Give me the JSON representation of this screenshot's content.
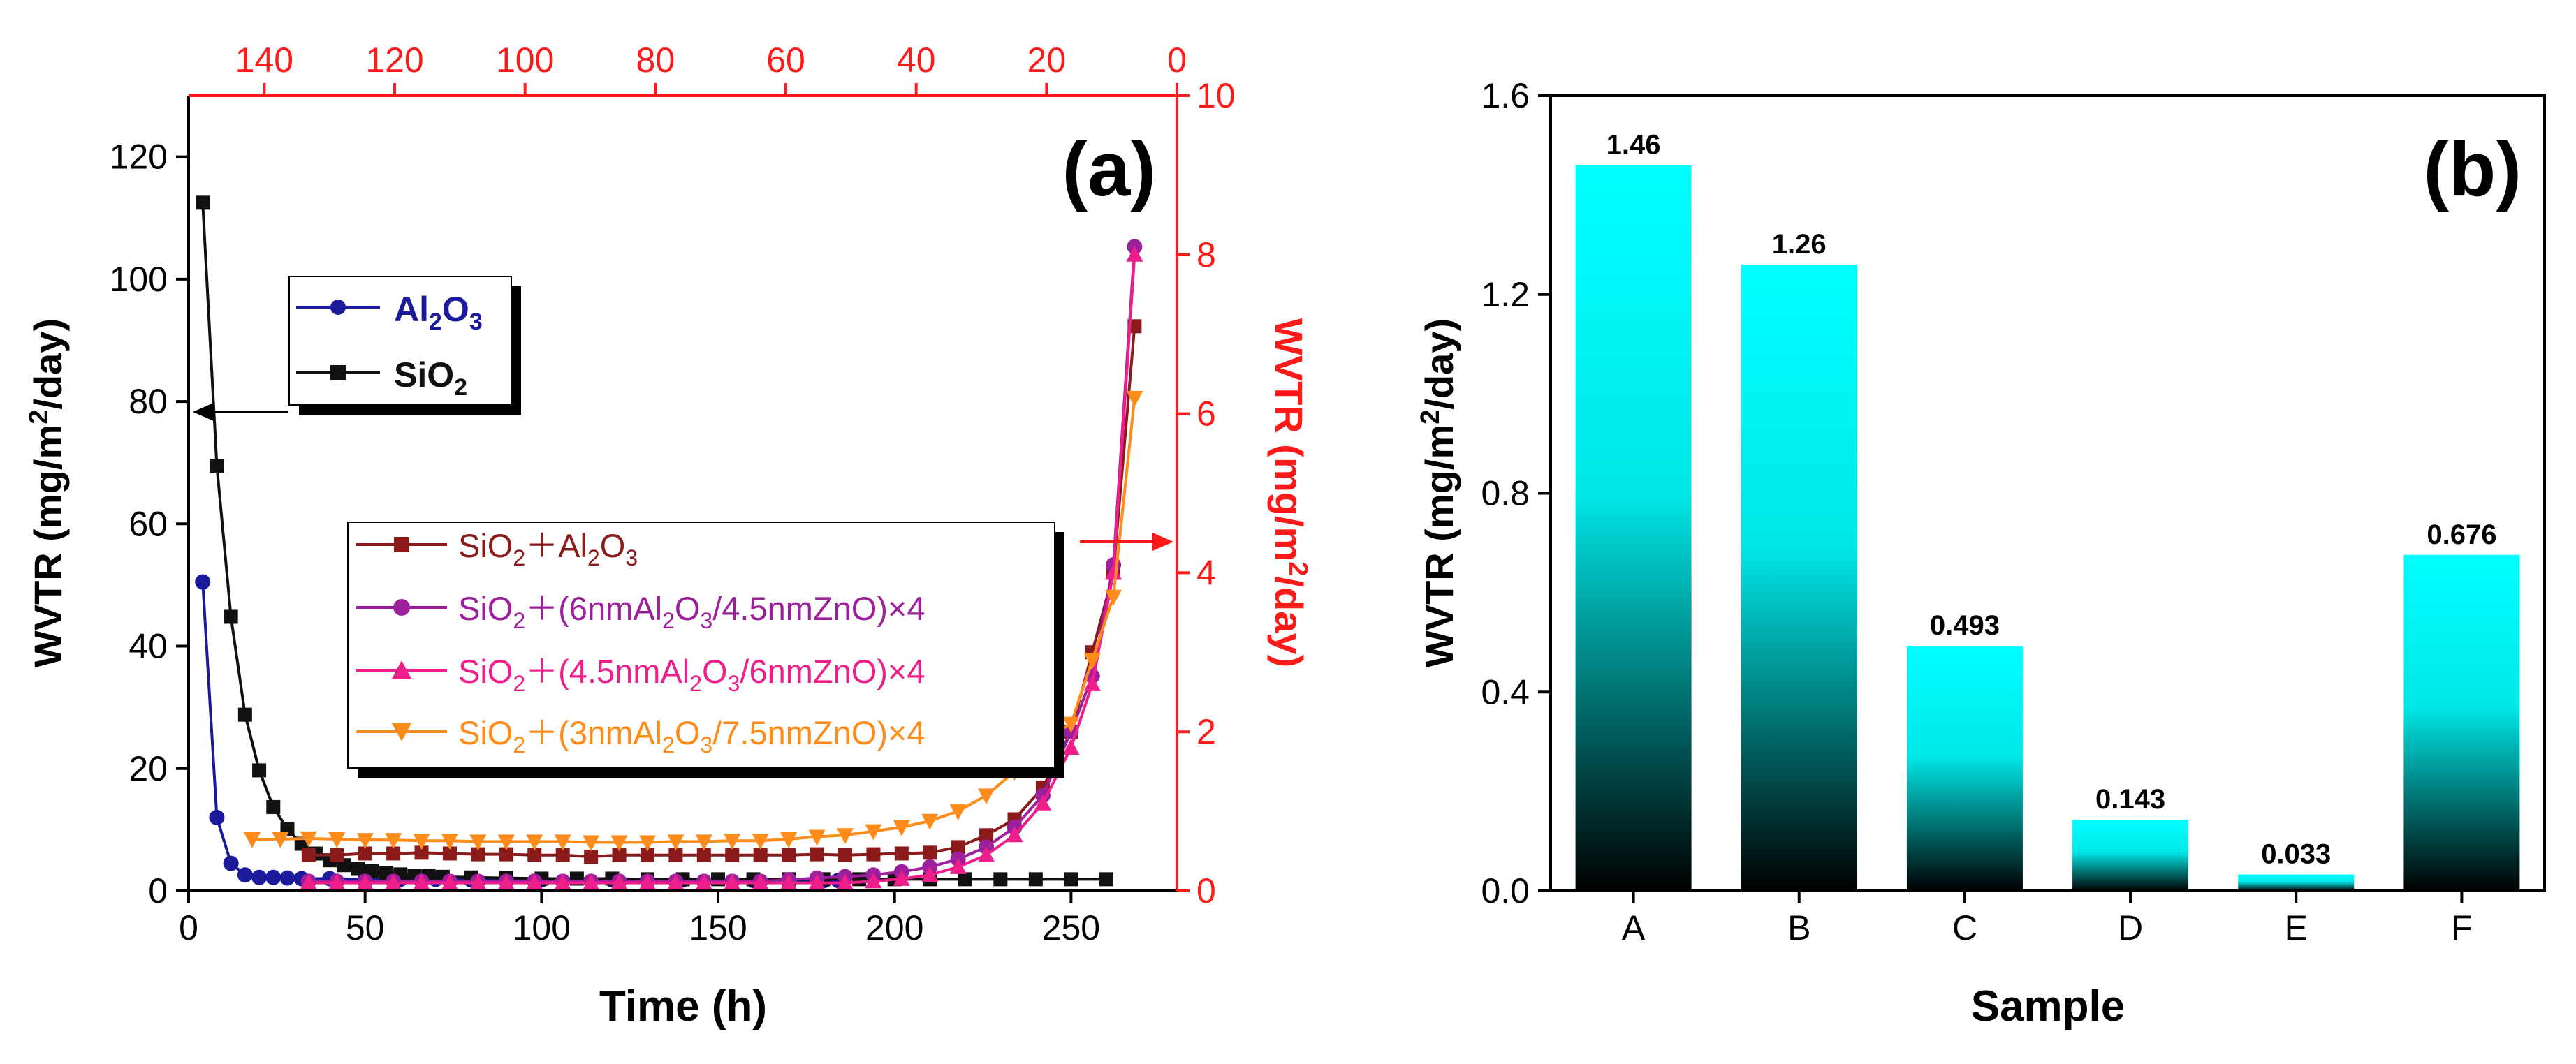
{
  "chart_data": [
    {
      "type": "line",
      "panel_label": "(a)",
      "xlabel": "Time (h)",
      "ylabel_left": "WVTR (mg/m²/day)",
      "ylabel_right": "WVTR (mg/m²/day)",
      "xlim": [
        0,
        280
      ],
      "ylim_left": [
        0,
        130
      ],
      "ylim_right": [
        0,
        10
      ],
      "xlim_top": [
        150,
        0
      ],
      "x_ticks": [
        0,
        50,
        100,
        150,
        200,
        250
      ],
      "y_ticks_left": [
        0,
        20,
        40,
        60,
        80,
        100,
        120
      ],
      "y_ticks_right": [
        0,
        2,
        4,
        6,
        8,
        10
      ],
      "x_ticks_top": [
        140,
        120,
        100,
        80,
        60,
        40,
        20,
        0
      ],
      "legend_left": {
        "items": [
          {
            "name": "Al2O3",
            "base": "Al",
            "sub1": "2",
            "mid": "O",
            "sub2": "3",
            "tail": ""
          },
          {
            "name": "SiO2",
            "base": "SiO",
            "sub1": "2",
            "mid": "",
            "sub2": "",
            "tail": ""
          }
        ]
      },
      "legend_right": {
        "items": [
          {
            "name": "SiO2+Al2O3",
            "p1": "SiO",
            "s1": "2",
            "p2": "＋Al",
            "s2": "2",
            "p3": "O",
            "s3": "3",
            "p4": ""
          },
          {
            "name": "SiO2+(6nmAl2O3/4.5nmZnO)×4",
            "p1": "SiO",
            "s1": "2",
            "p2": "＋(6nmAl",
            "s2": "2",
            "p3": "O",
            "s3": "3",
            "p4": "/4.5nmZnO)×4"
          },
          {
            "name": "SiO2+(4.5nmAl2O3/6nmZnO)×4",
            "p1": "SiO",
            "s1": "2",
            "p2": "＋(4.5nmAl",
            "s2": "2",
            "p3": "O",
            "s3": "3",
            "p4": "/6nmZnO)×4"
          },
          {
            "name": "SiO2+(3nmAl2O3/7.5nmZnO)×4",
            "p1": "SiO",
            "s1": "2",
            "p2": "＋(3nmAl",
            "s2": "2",
            "p3": "O",
            "s3": "3",
            "p4": "/7.5nmZnO)×4"
          }
        ]
      },
      "series": [
        {
          "name": "Al2O3",
          "axis": "left",
          "color": "#1a1a9a",
          "marker": "circle",
          "x": [
            4,
            8,
            12,
            16,
            20,
            24,
            28,
            32,
            40,
            50,
            60,
            70,
            80,
            100,
            120,
            140,
            160,
            180,
            184
          ],
          "y": [
            50.5,
            12,
            4.5,
            2.6,
            2.2,
            2.2,
            2.1,
            2.0,
            2.0,
            1.9,
            1.9,
            1.9,
            1.8,
            1.8,
            1.8,
            1.8,
            1.7,
            1.7,
            1.7
          ]
        },
        {
          "name": "SiO2",
          "axis": "left",
          "color": "#111111",
          "marker": "square",
          "x": [
            4,
            8,
            12,
            16,
            20,
            24,
            28,
            32,
            36,
            40,
            44,
            48,
            52,
            56,
            60,
            64,
            68,
            72,
            80,
            90,
            100,
            110,
            120,
            130,
            140,
            150,
            160,
            170,
            180,
            190,
            200,
            210,
            220,
            230,
            240,
            250,
            260
          ],
          "y": [
            112.5,
            69.5,
            44.8,
            28.8,
            19.7,
            13.7,
            10.1,
            7.7,
            6.1,
            5.0,
            4.2,
            3.6,
            3.2,
            2.9,
            2.7,
            2.5,
            2.4,
            2.3,
            2.2,
            2.1,
            2.0,
            2.0,
            2.0,
            1.9,
            1.9,
            1.9,
            1.9,
            1.9,
            1.9,
            1.9,
            1.9,
            1.9,
            1.9,
            1.9,
            1.9,
            1.9,
            1.9
          ]
        },
        {
          "name": "SiO2+Al2O3",
          "axis": "right",
          "color": "#8b1a1a",
          "marker": "square",
          "x": [
            34,
            42,
            50,
            58,
            66,
            74,
            82,
            90,
            98,
            106,
            114,
            122,
            130,
            138,
            146,
            154,
            162,
            170,
            178,
            186,
            194,
            202,
            210,
            218,
            226,
            234,
            242,
            250,
            256,
            262,
            268
          ],
          "y": [
            0.45,
            0.45,
            0.47,
            0.47,
            0.48,
            0.47,
            0.46,
            0.46,
            0.45,
            0.45,
            0.43,
            0.45,
            0.45,
            0.45,
            0.45,
            0.45,
            0.45,
            0.45,
            0.46,
            0.45,
            0.46,
            0.47,
            0.48,
            0.55,
            0.7,
            0.9,
            1.3,
            2.0,
            3.0,
            4.0,
            7.1
          ]
        },
        {
          "name": "SiO2+(6nmAl2O3/4.5nmZnO)×4",
          "axis": "right",
          "color": "#9c1f9c",
          "marker": "circle",
          "x": [
            34,
            42,
            50,
            58,
            66,
            74,
            82,
            90,
            98,
            106,
            114,
            122,
            130,
            138,
            146,
            154,
            162,
            170,
            178,
            186,
            194,
            202,
            210,
            218,
            226,
            234,
            242,
            250,
            256,
            262,
            268
          ],
          "y": [
            0.12,
            0.12,
            0.12,
            0.12,
            0.12,
            0.12,
            0.12,
            0.12,
            0.12,
            0.12,
            0.12,
            0.12,
            0.12,
            0.12,
            0.12,
            0.12,
            0.12,
            0.14,
            0.16,
            0.18,
            0.2,
            0.24,
            0.3,
            0.4,
            0.55,
            0.8,
            1.2,
            2.0,
            2.7,
            4.1,
            8.1
          ]
        },
        {
          "name": "SiO2+(4.5nmAl2O3/6nmZnO)×4",
          "axis": "right",
          "color": "#ee1f8a",
          "marker": "triangle-up",
          "x": [
            34,
            42,
            50,
            58,
            66,
            74,
            82,
            90,
            98,
            106,
            114,
            122,
            130,
            138,
            146,
            154,
            162,
            170,
            178,
            186,
            194,
            202,
            210,
            218,
            226,
            234,
            242,
            250,
            256,
            262,
            268
          ],
          "y": [
            0.1,
            0.1,
            0.1,
            0.1,
            0.1,
            0.1,
            0.1,
            0.1,
            0.1,
            0.1,
            0.1,
            0.1,
            0.1,
            0.1,
            0.1,
            0.1,
            0.1,
            0.1,
            0.1,
            0.1,
            0.12,
            0.15,
            0.2,
            0.3,
            0.45,
            0.7,
            1.1,
            1.8,
            2.6,
            4.0,
            8.0
          ]
        },
        {
          "name": "SiO2+(3nmAl2O3/7.5nmZnO)×4",
          "axis": "right",
          "color": "#ff8c1a",
          "marker": "triangle-down",
          "x": [
            18,
            26,
            34,
            42,
            50,
            58,
            66,
            74,
            82,
            90,
            98,
            106,
            114,
            122,
            130,
            138,
            146,
            154,
            162,
            170,
            178,
            186,
            194,
            202,
            210,
            218,
            226,
            234,
            242,
            250,
            256,
            262,
            268
          ],
          "y": [
            0.65,
            0.65,
            0.66,
            0.65,
            0.64,
            0.64,
            0.63,
            0.63,
            0.62,
            0.62,
            0.62,
            0.62,
            0.61,
            0.61,
            0.61,
            0.62,
            0.62,
            0.63,
            0.63,
            0.65,
            0.68,
            0.7,
            0.75,
            0.8,
            0.88,
            1.0,
            1.2,
            1.5,
            1.9,
            2.1,
            2.9,
            3.7,
            6.2
          ]
        }
      ]
    },
    {
      "type": "bar",
      "panel_label": "(b)",
      "xlabel": "Sample",
      "ylabel": "WVTR (mg/m²/day)",
      "ylim": [
        0,
        1.6
      ],
      "y_ticks": [
        "0.0",
        "0.4",
        "0.8",
        "1.2",
        "1.6"
      ],
      "categories": [
        "A",
        "B",
        "C",
        "D",
        "E",
        "F"
      ],
      "values": [
        1.46,
        1.26,
        0.493,
        0.143,
        0.033,
        0.676
      ],
      "value_labels": [
        "1.46",
        "1.26",
        "0.493",
        "0.143",
        "0.033",
        "0.676"
      ],
      "gradient_colors": [
        "#00ffff",
        "#000000"
      ]
    }
  ],
  "colors": {
    "right_axis": "#ff1a1a",
    "arrow": "#ff1a1a"
  },
  "axis_texts": {
    "a_ylabel_left": {
      "pre": "WVTR (mg/m",
      "sup": "2",
      "post": "/day)"
    },
    "a_ylabel_right": {
      "pre": "WVTR (mg/m",
      "sup": "2",
      "post": "/day)"
    },
    "b_ylabel": {
      "pre": "WVTR (mg/m",
      "sup": "2",
      "post": "/day)"
    }
  }
}
